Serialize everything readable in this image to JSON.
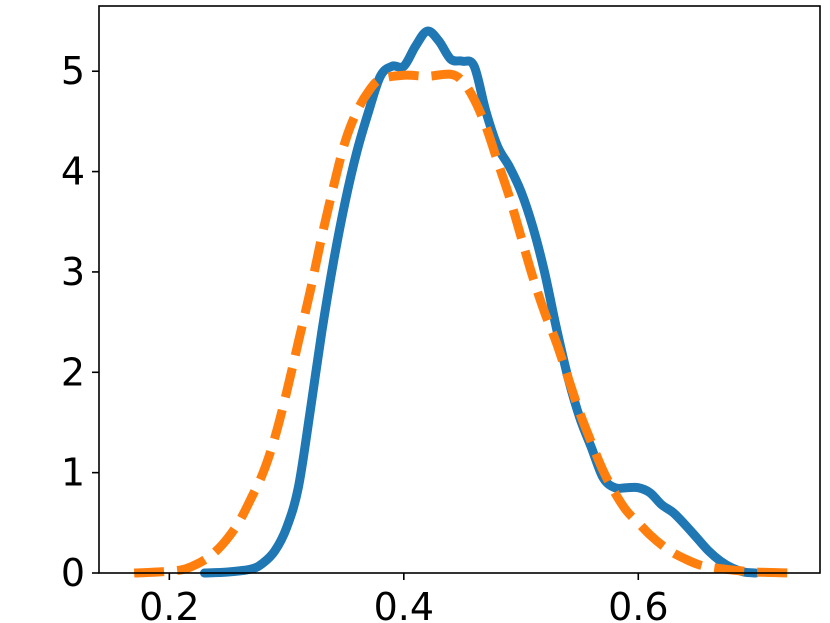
{
  "chart_data": {
    "type": "line",
    "title": "",
    "xlabel": "",
    "ylabel": "",
    "xlim": [
      0.14,
      0.755
    ],
    "ylim": [
      0,
      5.65
    ],
    "x_ticks": [
      {
        "value": 0.2,
        "label": "0.2"
      },
      {
        "value": 0.4,
        "label": "0.4"
      },
      {
        "value": 0.6,
        "label": "0.6"
      }
    ],
    "y_ticks": [
      {
        "value": 0,
        "label": "0"
      },
      {
        "value": 1,
        "label": "1"
      },
      {
        "value": 2,
        "label": "2"
      },
      {
        "value": 3,
        "label": "3"
      },
      {
        "value": 4,
        "label": "4"
      },
      {
        "value": 5,
        "label": "5"
      }
    ],
    "grid": false,
    "legend": "none",
    "series": [
      {
        "color": "#1f77b4",
        "line_style": "solid",
        "points": [
          [
            0.23,
            0.0
          ],
          [
            0.25,
            0.01
          ],
          [
            0.27,
            0.04
          ],
          [
            0.28,
            0.1
          ],
          [
            0.29,
            0.22
          ],
          [
            0.3,
            0.45
          ],
          [
            0.31,
            0.85
          ],
          [
            0.32,
            1.6
          ],
          [
            0.33,
            2.4
          ],
          [
            0.34,
            3.1
          ],
          [
            0.35,
            3.7
          ],
          [
            0.36,
            4.2
          ],
          [
            0.37,
            4.6
          ],
          [
            0.38,
            4.95
          ],
          [
            0.39,
            5.05
          ],
          [
            0.4,
            5.05
          ],
          [
            0.41,
            5.25
          ],
          [
            0.42,
            5.4
          ],
          [
            0.43,
            5.3
          ],
          [
            0.44,
            5.12
          ],
          [
            0.45,
            5.1
          ],
          [
            0.46,
            5.05
          ],
          [
            0.47,
            4.6
          ],
          [
            0.48,
            4.25
          ],
          [
            0.49,
            4.05
          ],
          [
            0.5,
            3.8
          ],
          [
            0.51,
            3.45
          ],
          [
            0.52,
            3.0
          ],
          [
            0.53,
            2.45
          ],
          [
            0.54,
            1.95
          ],
          [
            0.55,
            1.55
          ],
          [
            0.56,
            1.25
          ],
          [
            0.57,
            0.95
          ],
          [
            0.58,
            0.85
          ],
          [
            0.59,
            0.85
          ],
          [
            0.6,
            0.85
          ],
          [
            0.61,
            0.8
          ],
          [
            0.62,
            0.68
          ],
          [
            0.63,
            0.6
          ],
          [
            0.64,
            0.48
          ],
          [
            0.65,
            0.35
          ],
          [
            0.66,
            0.22
          ],
          [
            0.67,
            0.12
          ],
          [
            0.68,
            0.05
          ],
          [
            0.69,
            0.01
          ],
          [
            0.7,
            0.0
          ]
        ]
      },
      {
        "color": "#ff7f0e",
        "line_style": "dashed",
        "points": [
          [
            0.17,
            0.0
          ],
          [
            0.19,
            0.01
          ],
          [
            0.21,
            0.03
          ],
          [
            0.22,
            0.07
          ],
          [
            0.23,
            0.13
          ],
          [
            0.24,
            0.22
          ],
          [
            0.25,
            0.35
          ],
          [
            0.26,
            0.52
          ],
          [
            0.27,
            0.75
          ],
          [
            0.28,
            1.0
          ],
          [
            0.29,
            1.35
          ],
          [
            0.3,
            1.8
          ],
          [
            0.31,
            2.3
          ],
          [
            0.32,
            2.8
          ],
          [
            0.33,
            3.35
          ],
          [
            0.34,
            3.85
          ],
          [
            0.35,
            4.3
          ],
          [
            0.36,
            4.6
          ],
          [
            0.37,
            4.8
          ],
          [
            0.38,
            4.92
          ],
          [
            0.4,
            4.96
          ],
          [
            0.42,
            4.95
          ],
          [
            0.44,
            4.97
          ],
          [
            0.45,
            4.9
          ],
          [
            0.46,
            4.72
          ],
          [
            0.47,
            4.45
          ],
          [
            0.48,
            4.1
          ],
          [
            0.49,
            3.75
          ],
          [
            0.5,
            3.35
          ],
          [
            0.51,
            2.95
          ],
          [
            0.52,
            2.6
          ],
          [
            0.53,
            2.3
          ],
          [
            0.54,
            1.95
          ],
          [
            0.55,
            1.6
          ],
          [
            0.56,
            1.3
          ],
          [
            0.57,
            1.02
          ],
          [
            0.58,
            0.8
          ],
          [
            0.59,
            0.62
          ],
          [
            0.6,
            0.5
          ],
          [
            0.61,
            0.38
          ],
          [
            0.62,
            0.28
          ],
          [
            0.63,
            0.2
          ],
          [
            0.64,
            0.14
          ],
          [
            0.65,
            0.09
          ],
          [
            0.66,
            0.06
          ],
          [
            0.68,
            0.03
          ],
          [
            0.7,
            0.01
          ],
          [
            0.73,
            0.0
          ]
        ]
      }
    ]
  }
}
